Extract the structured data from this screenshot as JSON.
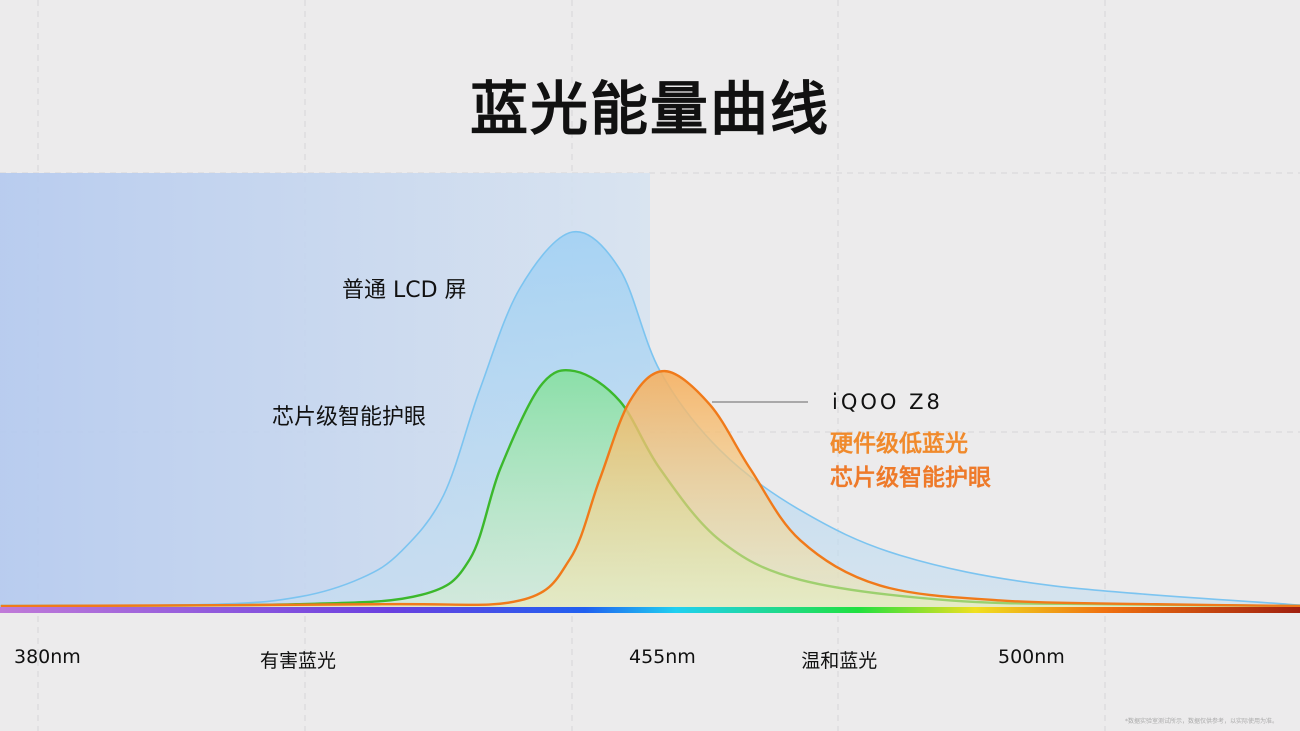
{
  "chart_data": {
    "type": "area",
    "title": "蓝光能量曲线",
    "xlabel": "",
    "ylabel": "",
    "xlim": [
      374,
      534
    ],
    "ylim": [
      0,
      1.15
    ],
    "x_unit": "nm",
    "grid": true,
    "harmful_region_end": 455,
    "x_tick_labels": [
      {
        "x": 380,
        "label": "380nm"
      },
      {
        "x": 410,
        "label": "有害蓝光"
      },
      {
        "x": 455,
        "label": "455nm"
      },
      {
        "x": 476,
        "label": "温和蓝光"
      },
      {
        "x": 500,
        "label": "500nm"
      }
    ],
    "series": [
      {
        "name": "普通 LCD 屏",
        "color": "#7cc4f0",
        "points": [
          [
            374,
            0.005
          ],
          [
            400,
            0.01
          ],
          [
            410.5,
            0.03
          ],
          [
            418,
            0.08
          ],
          [
            422.8,
            0.15
          ],
          [
            428,
            0.3
          ],
          [
            432.4,
            0.58
          ],
          [
            437.3,
            0.85
          ],
          [
            443.7,
            1.0
          ],
          [
            449.5,
            0.9
          ],
          [
            454.4,
            0.63
          ],
          [
            461.7,
            0.42
          ],
          [
            471.5,
            0.26
          ],
          [
            483.7,
            0.14
          ],
          [
            502,
            0.06
          ],
          [
            531,
            0.01
          ],
          [
            534,
            0.008
          ]
        ]
      },
      {
        "name": "芯片级智能护眼",
        "color": "#3cb82c",
        "points": [
          [
            374,
            0.005
          ],
          [
            410,
            0.01
          ],
          [
            425.3,
            0.035
          ],
          [
            431.2,
            0.13
          ],
          [
            434.9,
            0.37
          ],
          [
            439.8,
            0.59
          ],
          [
            444,
            0.63
          ],
          [
            449.5,
            0.55
          ],
          [
            454.4,
            0.37
          ],
          [
            461.7,
            0.18
          ],
          [
            471.5,
            0.075
          ],
          [
            489.8,
            0.02
          ],
          [
            510,
            0.01
          ],
          [
            534,
            0.005
          ]
        ]
      },
      {
        "name": "iQOO Z8",
        "color": "#f07a1a",
        "points": [
          [
            374,
            0.005
          ],
          [
            420,
            0.01
          ],
          [
            437.3,
            0.02
          ],
          [
            443.4,
            0.13
          ],
          [
            447,
            0.34
          ],
          [
            450.7,
            0.55
          ],
          [
            455,
            0.63
          ],
          [
            460.5,
            0.54
          ],
          [
            465.4,
            0.37
          ],
          [
            471.5,
            0.18
          ],
          [
            481.2,
            0.06
          ],
          [
            495.9,
            0.02
          ],
          [
            515,
            0.01
          ],
          [
            534,
            0.005
          ]
        ]
      }
    ]
  },
  "labels": {
    "lcd": "普通 LCD 屏",
    "chip": "芯片级智能护眼",
    "brand": "iQOO Z8",
    "feature1": "硬件级低蓝光",
    "feature2": "芯片级智能护眼",
    "footnote": "*数据实验室测试所示，数据仅供参考，以实际使用为准。"
  }
}
